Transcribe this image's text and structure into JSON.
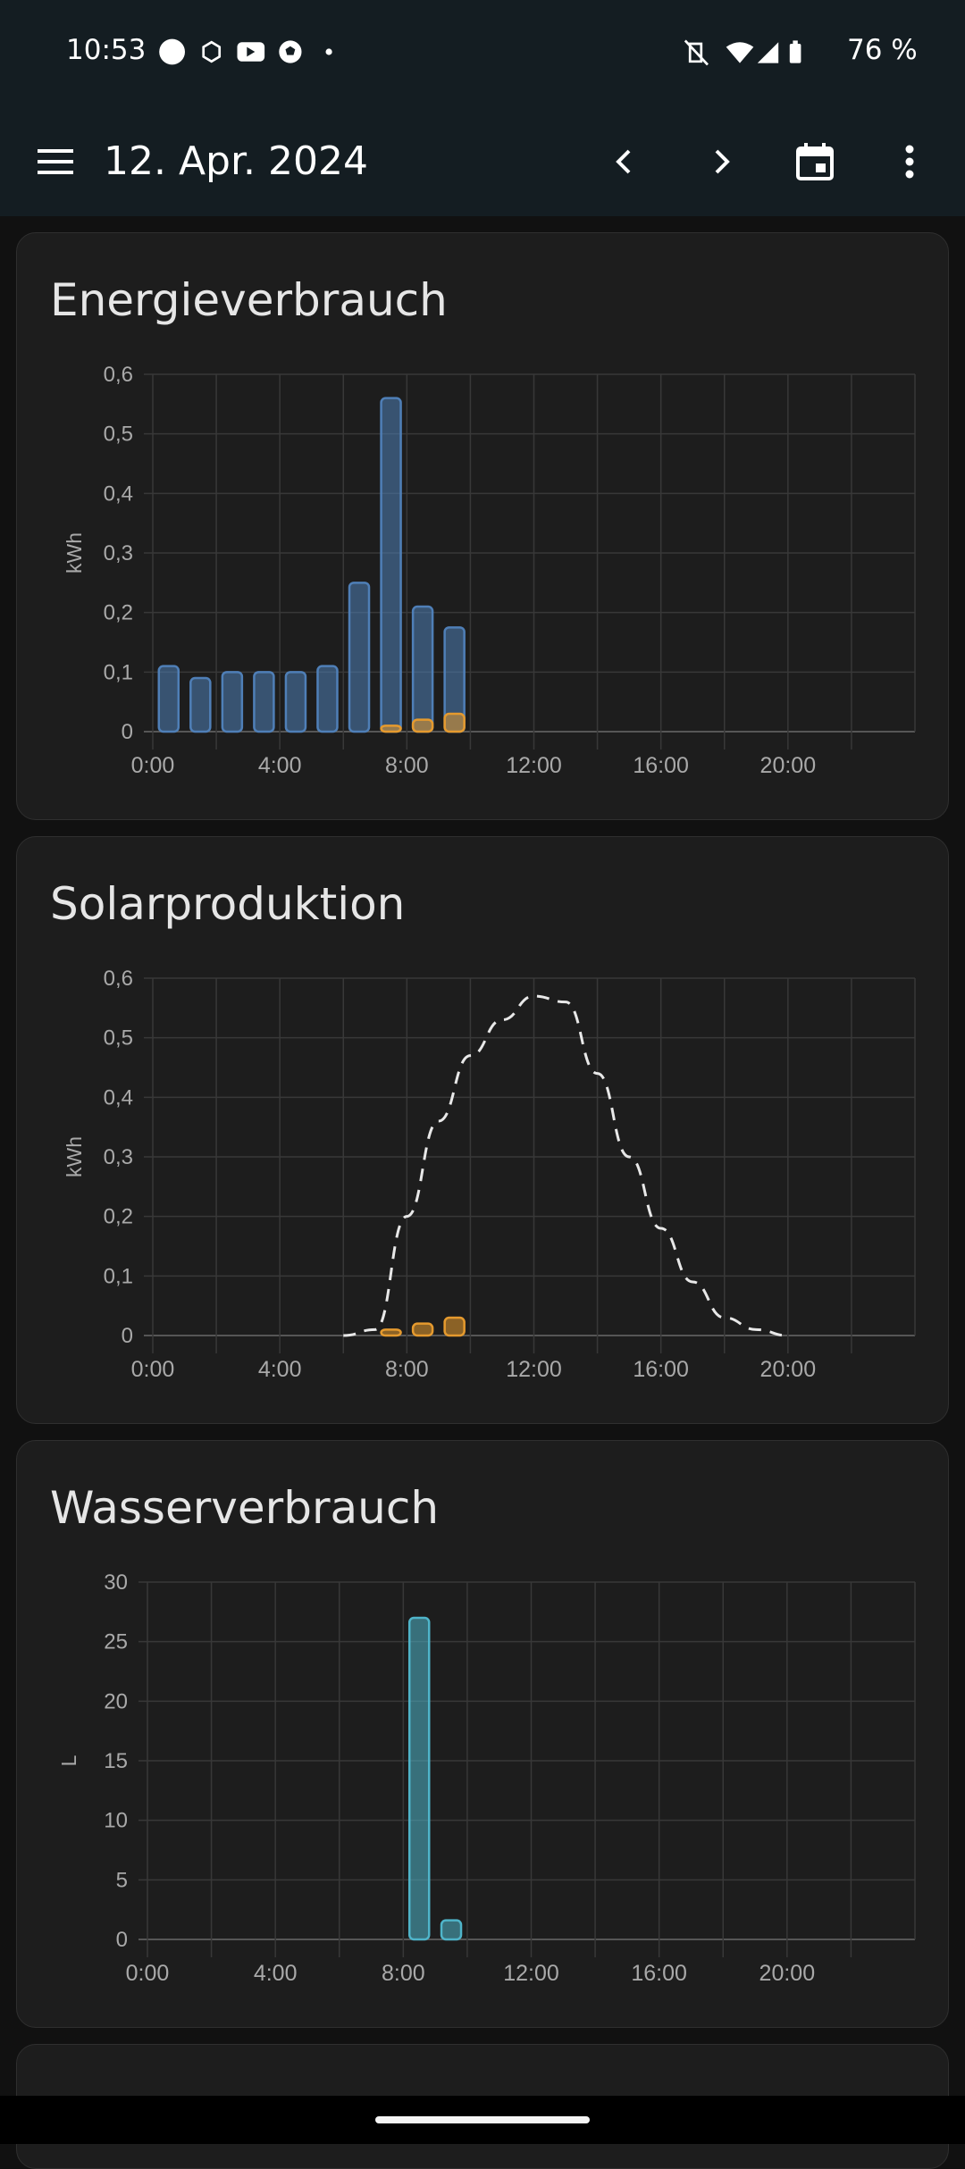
{
  "status_bar": {
    "time": "10:53",
    "battery": "76 %"
  },
  "app_bar": {
    "title": "12. Apr. 2024"
  },
  "icons": {
    "menu": "menu-icon",
    "prev": "chevron-left-icon",
    "next": "chevron-right-icon",
    "calendar": "calendar-icon",
    "more": "more-vert-icon"
  },
  "colors": {
    "background": "#111111",
    "card": "#1d1d1d",
    "grid": "#383838",
    "energy_grid": "#4f7fb7",
    "energy_solar": "#e59a2e",
    "water": "#4fb4c9",
    "forecast": "#e8e8e8"
  },
  "cards": [
    {
      "title": "Energieverbrauch"
    },
    {
      "title": "Solarproduktion"
    },
    {
      "title": "Wasserverbrauch"
    }
  ],
  "chart_data": [
    {
      "type": "bar",
      "title": "Energieverbrauch",
      "ylabel": "kWh",
      "ylim": [
        0,
        0.6
      ],
      "yticks": [
        "0",
        "0,1",
        "0,2",
        "0,3",
        "0,4",
        "0,5",
        "0,6"
      ],
      "xticks": [
        "0:00",
        "4:00",
        "8:00",
        "12:00",
        "16:00",
        "20:00"
      ],
      "x": [
        0,
        1,
        2,
        3,
        4,
        5,
        6,
        7,
        8,
        9
      ],
      "series": [
        {
          "values": [
            0.11,
            0.09,
            0.1,
            0.1,
            0.1,
            0.11,
            0.25,
            0.56,
            0.21,
            0.175
          ],
          "color": "#4f7fb7"
        },
        {
          "values": [
            0,
            0,
            0,
            0,
            0,
            0,
            0,
            0.01,
            0.02,
            0.03
          ],
          "color": "#e59a2e"
        }
      ],
      "stacked": false,
      "grid": true
    },
    {
      "type": "bar",
      "title": "Solarproduktion",
      "ylabel": "kWh",
      "ylim": [
        0,
        0.6
      ],
      "yticks": [
        "0",
        "0,1",
        "0,2",
        "0,3",
        "0,4",
        "0,5",
        "0,6"
      ],
      "xticks": [
        "0:00",
        "4:00",
        "8:00",
        "12:00",
        "16:00",
        "20:00"
      ],
      "x": [
        7,
        8,
        9
      ],
      "series": [
        {
          "values": [
            0.01,
            0.02,
            0.03
          ],
          "color": "#e59a2e"
        }
      ],
      "forecast_line": {
        "style": "dashed",
        "x": [
          6,
          7,
          8,
          9,
          10,
          11,
          12,
          13,
          14,
          15,
          16,
          17,
          18,
          19,
          20
        ],
        "y": [
          0,
          0.01,
          0.2,
          0.36,
          0.47,
          0.53,
          0.57,
          0.56,
          0.44,
          0.3,
          0.18,
          0.09,
          0.03,
          0.01,
          0.0
        ]
      },
      "grid": true
    },
    {
      "type": "bar",
      "title": "Wasserverbrauch",
      "ylabel": "L",
      "ylim": [
        0,
        30
      ],
      "yticks": [
        "0",
        "5",
        "10",
        "15",
        "20",
        "25",
        "30"
      ],
      "xticks": [
        "0:00",
        "4:00",
        "8:00",
        "12:00",
        "16:00",
        "20:00"
      ],
      "x": [
        8,
        9
      ],
      "series": [
        {
          "values": [
            27,
            1.6
          ],
          "color": "#4fb4c9"
        }
      ],
      "grid": true
    }
  ]
}
